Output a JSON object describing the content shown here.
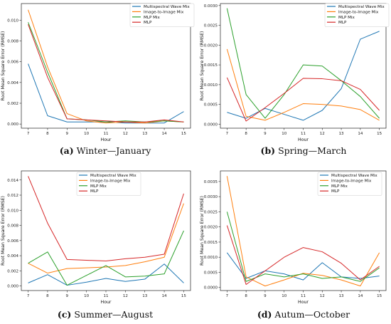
{
  "chart_data": [
    {
      "type": "line",
      "x": [
        7,
        8,
        9,
        10,
        11,
        12,
        13,
        14,
        15
      ],
      "xlabel": "Hour",
      "ylabel": "Root Mean Square Error (RMSE)",
      "ylim": [
        -0.0004,
        0.0116
      ],
      "yticks": [
        0.0,
        0.002,
        0.004,
        0.006,
        0.008,
        0.01
      ],
      "ytick_labels": [
        "0.000",
        "0.002",
        "0.004",
        "0.006",
        "0.008",
        "0.010"
      ],
      "legend_position": "top-right",
      "caption_letter": "(a)",
      "caption_text": "Winter—January",
      "series": [
        {
          "name": "Multispectral Wave Mix",
          "color": "#1f77b4",
          "values": [
            0.0058,
            0.0008,
            0.0002,
            0.0002,
            0.0002,
            0.0001,
            0.0001,
            0.0001,
            0.0012
          ]
        },
        {
          "name": "Image-to-Image Mix",
          "color": "#ff7f0e",
          "values": [
            0.011,
            0.0055,
            0.001,
            0.0003,
            0.0001,
            0.0002,
            0.0001,
            0.0003,
            0.0002
          ]
        },
        {
          "name": "MLP Mix",
          "color": "#2ca02c",
          "values": [
            0.0098,
            0.005,
            0.0005,
            0.0004,
            0.0002,
            0.0003,
            0.0002,
            0.0003,
            0.0002
          ]
        },
        {
          "name": "MLP",
          "color": "#d62728",
          "values": [
            0.0096,
            0.0045,
            0.0005,
            0.0004,
            0.0003,
            0.0002,
            0.0002,
            0.0004,
            0.0002
          ]
        }
      ]
    },
    {
      "type": "line",
      "x": [
        7,
        8,
        9,
        10,
        11,
        12,
        13,
        14,
        15
      ],
      "xlabel": "Hour",
      "ylabel": "Root Mean Square Error (RMSE)",
      "ylim": [
        -0.0001,
        0.00305
      ],
      "yticks": [
        0.0,
        0.0005,
        0.001,
        0.0015,
        0.002,
        0.0025,
        0.003
      ],
      "ytick_labels": [
        "0.0000",
        "0.0005",
        "0.0010",
        "0.0015",
        "0.0020",
        "0.0025",
        "0.0030"
      ],
      "legend_position": "top-right",
      "caption_letter": "(b)",
      "caption_text": "Spring—March",
      "series": [
        {
          "name": "Multispectral Wave Mix",
          "color": "#1f77b4",
          "values": [
            0.0003,
            0.00015,
            0.0004,
            0.00025,
            0.0001,
            0.00035,
            0.0009,
            0.00215,
            0.00235
          ]
        },
        {
          "name": "Image-to-Image Mix",
          "color": "#ff7f0e",
          "values": [
            0.0019,
            0.0002,
            0.0001,
            0.0003,
            0.00052,
            0.0005,
            0.00046,
            0.00037,
            0.0001
          ]
        },
        {
          "name": "MLP Mix",
          "color": "#2ca02c",
          "values": [
            0.00293,
            0.00075,
            0.00015,
            0.00075,
            0.0015,
            0.00147,
            0.0011,
            0.0007,
            0.00015
          ]
        },
        {
          "name": "MLP",
          "color": "#d62728",
          "values": [
            0.00118,
            8e-05,
            0.00042,
            0.00078,
            0.00116,
            0.00115,
            0.0011,
            0.00088,
            0.00035
          ]
        }
      ]
    },
    {
      "type": "line",
      "x": [
        7,
        8,
        9,
        10,
        11,
        12,
        13,
        14,
        15
      ],
      "xlabel": "Hour",
      "ylabel": "Root Mean Square Error (RMSE)",
      "ylim": [
        -0.0006,
        0.0152
      ],
      "yticks": [
        0.0,
        0.002,
        0.004,
        0.006,
        0.008,
        0.01,
        0.012,
        0.014
      ],
      "ytick_labels": [
        "0.000",
        "0.002",
        "0.004",
        "0.006",
        "0.008",
        "0.010",
        "0.012",
        "0.014"
      ],
      "legend_position": "top-center",
      "caption_letter": "(c)",
      "caption_text": "Summer—August",
      "series": [
        {
          "name": "Multispectral Wave Mix",
          "color": "#1f77b4",
          "values": [
            0.0004,
            0.0015,
            0.0001,
            0.0005,
            0.001,
            0.0006,
            0.0009,
            0.0029,
            0.0004
          ]
        },
        {
          "name": "Image-to-Image Mix",
          "color": "#ff7f0e",
          "values": [
            0.003,
            0.0017,
            0.0023,
            0.0024,
            0.0025,
            0.0027,
            0.0032,
            0.0038,
            0.0109
          ]
        },
        {
          "name": "MLP Mix",
          "color": "#2ca02c",
          "values": [
            0.003,
            0.0045,
            0.0001,
            0.0014,
            0.0027,
            0.0012,
            0.0013,
            0.0016,
            0.0073
          ]
        },
        {
          "name": "MLP",
          "color": "#d62728",
          "values": [
            0.0145,
            0.0083,
            0.0035,
            0.0034,
            0.0033,
            0.0036,
            0.0038,
            0.0042,
            0.0122
          ]
        }
      ]
    },
    {
      "type": "line",
      "x": [
        7,
        8,
        9,
        10,
        11,
        12,
        13,
        14,
        15
      ],
      "xlabel": "Hour",
      "ylabel": "Root Mean Square Error (RMSE)",
      "ylim": [
        -0.0001,
        0.00385
      ],
      "yticks": [
        0.0,
        0.0005,
        0.001,
        0.0015,
        0.002,
        0.0025,
        0.003,
        0.0035
      ],
      "ytick_labels": [
        "0.0000",
        "0.0005",
        "0.0010",
        "0.0015",
        "0.0020",
        "0.0025",
        "0.0030",
        "0.0035"
      ],
      "legend_position": "top-center",
      "caption_letter": "(d)",
      "caption_text": "Autum—October",
      "series": [
        {
          "name": "Multispectral Wave Mix",
          "color": "#1f77b4",
          "values": [
            0.00115,
            0.0003,
            0.00055,
            0.00045,
            0.00025,
            0.00082,
            0.00035,
            0.0003,
            0.00038
          ]
        },
        {
          "name": "Image-to-Image Mix",
          "color": "#ff7f0e",
          "values": [
            0.00368,
            0.00035,
            5e-05,
            0.00025,
            0.00047,
            0.0004,
            0.00025,
            5e-05,
            0.00115
          ]
        },
        {
          "name": "MLP Mix",
          "color": "#2ca02c",
          "values": [
            0.0025,
            0.0002,
            0.00045,
            0.00035,
            0.00045,
            0.0003,
            0.00035,
            0.0002,
            0.00065
          ]
        },
        {
          "name": "MLP",
          "color": "#d62728",
          "values": [
            0.00205,
            0.0001,
            0.00055,
            0.001,
            0.00132,
            0.00118,
            0.0008,
            0.00025,
            0.0007
          ]
        }
      ]
    }
  ]
}
